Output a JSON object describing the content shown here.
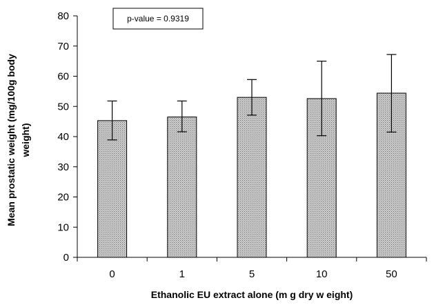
{
  "chart_data": {
    "type": "bar",
    "categories": [
      "0",
      "1",
      "5",
      "10",
      "50"
    ],
    "values": [
      45.3,
      46.5,
      53.0,
      52.6,
      54.4
    ],
    "error_bars": [
      {
        "low": 38.9,
        "high": 51.8
      },
      {
        "low": 41.6,
        "high": 51.8
      },
      {
        "low": 47.1,
        "high": 58.9
      },
      {
        "low": 40.3,
        "high": 65.0
      },
      {
        "low": 41.5,
        "high": 67.2
      }
    ],
    "xlabel": "Ethanolic EU extract alone (m g dry w eight)",
    "ylabel_lines": [
      "Mean prostatic weight (mg/100g body",
      "weight)"
    ],
    "ylim": [
      0,
      80
    ],
    "yticks": [
      0,
      10,
      20,
      30,
      40,
      50,
      60,
      70,
      80
    ],
    "ytick_labels": [
      "0",
      "10",
      "20",
      "30",
      "40",
      "50",
      "60",
      "70",
      "80"
    ],
    "annotation": "p-value = 0.9319",
    "grid": false,
    "bar_fill": "#b8b8b8",
    "bar_pattern": "dotted-stipple"
  }
}
